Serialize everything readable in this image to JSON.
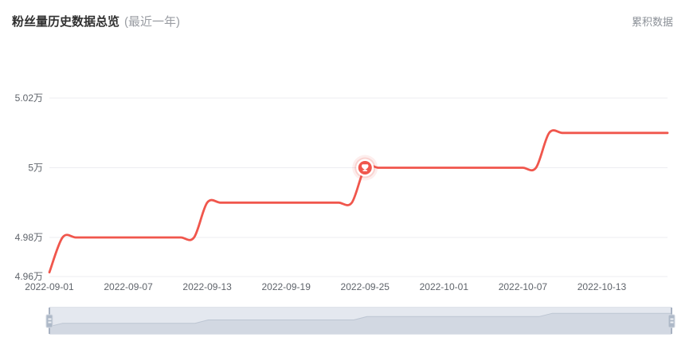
{
  "header": {
    "title": "粉丝量历史数据总览",
    "subtitle": "(最近一年)"
  },
  "legend": {
    "label": "累积数据"
  },
  "chart_data": {
    "type": "line",
    "title": "粉丝量历史数据总览 (最近一年)",
    "smooth": true,
    "grid": true,
    "legend_position": "top-right",
    "colors": {
      "line": "#f0564c",
      "marker": "#f0564c"
    },
    "unit": "万",
    "ylim": [
      49600,
      50200
    ],
    "y_ticks": [
      {
        "label": "4.96万",
        "value": 49600,
        "at_axis_bottom": true
      },
      {
        "label": "4.98万",
        "value": 49800
      },
      {
        "label": "5万",
        "value": 50000
      },
      {
        "label": "5.02万",
        "value": 50200
      }
    ],
    "x_ticks": [
      "2022-09-01",
      "2022-09-07",
      "2022-09-13",
      "2022-09-19",
      "2022-09-25",
      "2022-10-01",
      "2022-10-07",
      "2022-10-13"
    ],
    "milestone": {
      "date": "2022-09-25",
      "value": 50000,
      "icon": "trophy-icon"
    },
    "series": [
      {
        "name": "累积数据",
        "x": [
          "2022-09-01",
          "2022-09-02",
          "2022-09-03",
          "2022-09-04",
          "2022-09-05",
          "2022-09-06",
          "2022-09-07",
          "2022-09-08",
          "2022-09-09",
          "2022-09-10",
          "2022-09-11",
          "2022-09-12",
          "2022-09-13",
          "2022-09-14",
          "2022-09-15",
          "2022-09-16",
          "2022-09-17",
          "2022-09-18",
          "2022-09-19",
          "2022-09-20",
          "2022-09-21",
          "2022-09-22",
          "2022-09-23",
          "2022-09-24",
          "2022-09-25",
          "2022-09-26",
          "2022-09-27",
          "2022-09-28",
          "2022-09-29",
          "2022-09-30",
          "2022-10-01",
          "2022-10-02",
          "2022-10-03",
          "2022-10-04",
          "2022-10-05",
          "2022-10-06",
          "2022-10-07",
          "2022-10-08",
          "2022-10-09",
          "2022-10-10",
          "2022-10-11",
          "2022-10-12",
          "2022-10-13",
          "2022-10-14",
          "2022-10-15",
          "2022-10-16",
          "2022-10-17",
          "2022-10-18"
        ],
        "values": [
          49700,
          49800,
          49800,
          49800,
          49800,
          49800,
          49800,
          49800,
          49800,
          49800,
          49800,
          49800,
          49900,
          49900,
          49900,
          49900,
          49900,
          49900,
          49900,
          49900,
          49900,
          49900,
          49900,
          49900,
          50000,
          50000,
          50000,
          50000,
          50000,
          50000,
          50000,
          50000,
          50000,
          50000,
          50000,
          50000,
          50000,
          50000,
          50100,
          50100,
          50100,
          50100,
          50100,
          50100,
          50100,
          50100,
          50100,
          50100
        ]
      }
    ]
  }
}
